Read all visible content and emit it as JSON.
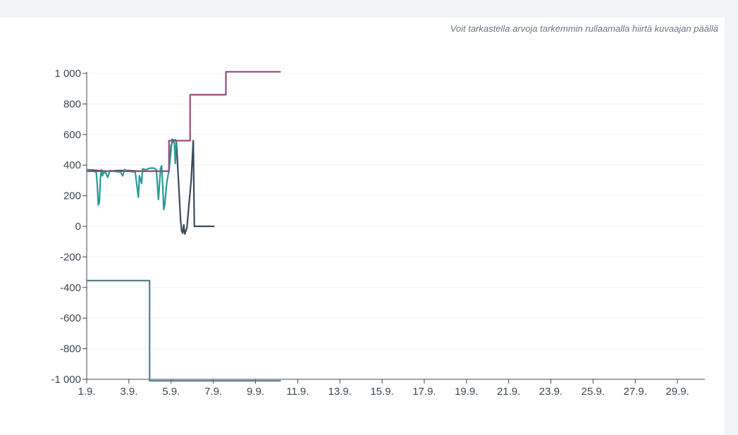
{
  "hint_text": "Voit tarkastella arvoja tarkemmin rullaamalla hiirtä kuvaajan päällä",
  "chart_data": {
    "type": "line",
    "title": "",
    "xlabel": "",
    "ylabel": "",
    "grid": true,
    "legend": "none",
    "xlim": [
      1,
      30
    ],
    "ylim": [
      -1000,
      1000
    ],
    "x_tick_values": [
      1,
      3,
      5,
      7,
      9,
      11,
      13,
      15,
      17,
      19,
      21,
      23,
      25,
      27,
      29
    ],
    "x_tick_labels": [
      "1.9.",
      "3.9.",
      "5.9.",
      "7.9.",
      "9.9.",
      "11.9.",
      "13.9.",
      "15.9.",
      "17.9.",
      "19.9.",
      "21.9.",
      "23.9.",
      "25.9.",
      "27.9.",
      "29.9."
    ],
    "y_tick_values": [
      1000,
      800,
      600,
      400,
      200,
      0,
      -200,
      -400,
      -600,
      -800,
      -1000
    ],
    "y_tick_labels": [
      "1 000",
      "800",
      "600",
      "400",
      "200",
      "0",
      "-200",
      "-400",
      "-600",
      "-800",
      "-1 000"
    ],
    "series": [
      {
        "color": "#3a4a5c",
        "points": [
          [
            1,
            370
          ],
          [
            1.5,
            365
          ],
          [
            2,
            360
          ],
          [
            2.5,
            365
          ],
          [
            3,
            365
          ],
          [
            3.5,
            360
          ],
          [
            4,
            360
          ],
          [
            4.5,
            360
          ],
          [
            4.9,
            360
          ],
          [
            5,
            530
          ],
          [
            5.1,
            560
          ],
          [
            5.2,
            565
          ],
          [
            5.25,
            560
          ],
          [
            5.35,
            300
          ],
          [
            5.45,
            40
          ],
          [
            5.5,
            -30
          ],
          [
            5.55,
            -45
          ],
          [
            5.6,
            10
          ],
          [
            5.65,
            -50
          ],
          [
            5.75,
            -10
          ],
          [
            5.85,
            150
          ],
          [
            5.95,
            300
          ],
          [
            6.05,
            560
          ],
          [
            6.1,
            0
          ],
          [
            7.05,
            0
          ]
        ]
      },
      {
        "color": "#2a9a95",
        "points": [
          [
            1,
            370
          ],
          [
            1.3,
            360
          ],
          [
            1.45,
            355
          ],
          [
            1.5,
            270
          ],
          [
            1.55,
            140
          ],
          [
            1.6,
            155
          ],
          [
            1.65,
            320
          ],
          [
            1.7,
            370
          ],
          [
            1.75,
            330
          ],
          [
            1.8,
            350
          ],
          [
            1.9,
            350
          ],
          [
            2.0,
            320
          ],
          [
            2.1,
            365
          ],
          [
            2.3,
            360
          ],
          [
            2.6,
            355
          ],
          [
            2.7,
            330
          ],
          [
            2.8,
            370
          ],
          [
            3.0,
            360
          ],
          [
            3.3,
            355
          ],
          [
            3.45,
            190
          ],
          [
            3.5,
            330
          ],
          [
            3.6,
            280
          ],
          [
            3.65,
            375
          ],
          [
            3.8,
            370
          ],
          [
            4.0,
            380
          ],
          [
            4.2,
            380
          ],
          [
            4.3,
            370
          ],
          [
            4.4,
            175
          ],
          [
            4.5,
            380
          ],
          [
            4.55,
            395
          ],
          [
            4.6,
            270
          ],
          [
            4.65,
            110
          ],
          [
            4.7,
            140
          ],
          [
            4.8,
            290
          ],
          [
            4.9,
            365
          ],
          [
            5.0,
            500
          ],
          [
            5.05,
            570
          ],
          [
            5.15,
            560
          ],
          [
            5.2,
            410
          ],
          [
            5.25,
            560
          ]
        ]
      },
      {
        "color": "#9b4a7e",
        "points": [
          [
            1,
            360
          ],
          [
            4.9,
            360
          ],
          [
            4.9,
            560
          ],
          [
            5.9,
            560
          ],
          [
            5.9,
            860
          ],
          [
            7.6,
            860
          ],
          [
            7.6,
            1010
          ],
          [
            10.2,
            1010
          ]
        ]
      },
      {
        "color": "#5a7d90",
        "points": [
          [
            1,
            -355
          ],
          [
            3.98,
            -355
          ],
          [
            3.98,
            -1010
          ],
          [
            10.2,
            -1010
          ]
        ]
      }
    ]
  }
}
